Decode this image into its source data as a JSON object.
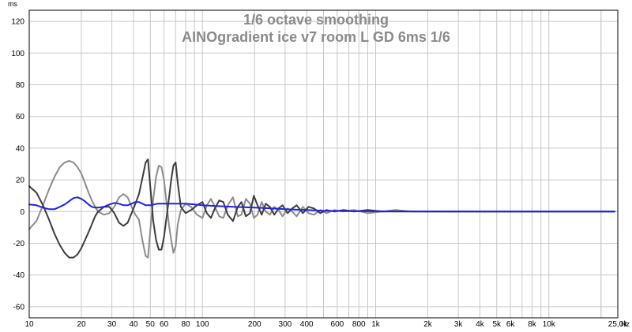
{
  "chart_data": {
    "type": "line",
    "title": "1/6 octave smoothing",
    "subtitle": "AINOgradient ice v7 room L GD 6ms 1/6",
    "ylabel": "ms",
    "xlabel": "Hz",
    "x_scale": "log",
    "xlim": [
      10,
      25000
    ],
    "ylim": [
      -67,
      127
    ],
    "y_ticks": [
      -60,
      -40,
      -20,
      0,
      20,
      40,
      60,
      80,
      100,
      120
    ],
    "x_ticks": [
      {
        "value": 10,
        "label": "10"
      },
      {
        "value": 20,
        "label": "20"
      },
      {
        "value": 30,
        "label": "30"
      },
      {
        "value": 40,
        "label": "40"
      },
      {
        "value": 50,
        "label": "50"
      },
      {
        "value": 60,
        "label": "60"
      },
      {
        "value": 80,
        "label": "80"
      },
      {
        "value": 100,
        "label": "100"
      },
      {
        "value": 200,
        "label": "200"
      },
      {
        "value": 300,
        "label": "300"
      },
      {
        "value": 400,
        "label": "400"
      },
      {
        "value": 600,
        "label": "600"
      },
      {
        "value": 800,
        "label": "800"
      },
      {
        "value": 1000,
        "label": "1k"
      },
      {
        "value": 2000,
        "label": "2k"
      },
      {
        "value": 3000,
        "label": "3k"
      },
      {
        "value": 4000,
        "label": "4k"
      },
      {
        "value": 5000,
        "label": "5k"
      },
      {
        "value": 6000,
        "label": "6k"
      },
      {
        "value": 8000,
        "label": "8k"
      },
      {
        "value": 10000,
        "label": "10k"
      },
      {
        "value": 25000,
        "label": "25,0k"
      }
    ],
    "grid": true,
    "colors": {
      "grid": "#c8c8c8",
      "title": "#8a8a8a",
      "series_dark": "#3c3c3c",
      "series_light": "#8c8c8c",
      "series_blue": "#2222dd"
    },
    "series": [
      {
        "color": "#8c8c8c",
        "points": [
          [
            10,
            -11
          ],
          [
            11,
            -6
          ],
          [
            12,
            4
          ],
          [
            13,
            14
          ],
          [
            14,
            22
          ],
          [
            15,
            28
          ],
          [
            16,
            31
          ],
          [
            17,
            32
          ],
          [
            18,
            31
          ],
          [
            19,
            28
          ],
          [
            20,
            24
          ],
          [
            21,
            18
          ],
          [
            22,
            12
          ],
          [
            23,
            7
          ],
          [
            24,
            3
          ],
          [
            25,
            0
          ],
          [
            27,
            -2
          ],
          [
            29,
            -1
          ],
          [
            31,
            3
          ],
          [
            33,
            9
          ],
          [
            35,
            11
          ],
          [
            37,
            9
          ],
          [
            39,
            3
          ],
          [
            41,
            -2
          ],
          [
            43,
            -5
          ],
          [
            45,
            -18
          ],
          [
            47,
            -28
          ],
          [
            48.5,
            -29
          ],
          [
            50,
            -12
          ],
          [
            52,
            8
          ],
          [
            54,
            22
          ],
          [
            56,
            29
          ],
          [
            58,
            28
          ],
          [
            60,
            20
          ],
          [
            62,
            6
          ],
          [
            64,
            -8
          ],
          [
            66,
            -18
          ],
          [
            68,
            -26
          ],
          [
            70,
            -22
          ],
          [
            72,
            -8
          ],
          [
            75,
            1
          ],
          [
            80,
            5
          ],
          [
            86,
            3
          ],
          [
            93,
            -2
          ],
          [
            100,
            -4
          ],
          [
            106,
            4
          ],
          [
            112,
            8
          ],
          [
            118,
            3
          ],
          [
            125,
            -3
          ],
          [
            132,
            -4
          ],
          [
            140,
            4
          ],
          [
            150,
            9
          ],
          [
            160,
            -3
          ],
          [
            168,
            -2
          ],
          [
            178,
            8
          ],
          [
            188,
            5
          ],
          [
            198,
            -4
          ],
          [
            208,
            -2
          ],
          [
            220,
            6
          ],
          [
            232,
            0
          ],
          [
            245,
            -2
          ],
          [
            260,
            3
          ],
          [
            275,
            1
          ],
          [
            290,
            -3
          ],
          [
            310,
            2
          ],
          [
            330,
            0
          ],
          [
            350,
            -3
          ],
          [
            380,
            3
          ],
          [
            410,
            -1
          ],
          [
            440,
            -2
          ],
          [
            480,
            1
          ],
          [
            520,
            -1
          ],
          [
            580,
            1
          ],
          [
            650,
            0
          ],
          [
            750,
            1
          ],
          [
            900,
            -1
          ],
          [
            1100,
            0
          ],
          [
            1300,
            1
          ],
          [
            1600,
            0
          ],
          [
            2000,
            0
          ],
          [
            3000,
            0
          ],
          [
            5000,
            0
          ],
          [
            8000,
            0
          ],
          [
            12000,
            0
          ],
          [
            18000,
            0
          ],
          [
            24000,
            0
          ]
        ]
      },
      {
        "color": "#3c3c3c",
        "points": [
          [
            10,
            16
          ],
          [
            11,
            12
          ],
          [
            12,
            4
          ],
          [
            13,
            -5
          ],
          [
            14,
            -14
          ],
          [
            15,
            -21
          ],
          [
            16,
            -26
          ],
          [
            17,
            -29
          ],
          [
            18,
            -29
          ],
          [
            19,
            -27
          ],
          [
            20,
            -23
          ],
          [
            21,
            -18
          ],
          [
            22,
            -13
          ],
          [
            23,
            -8
          ],
          [
            24,
            -3
          ],
          [
            25,
            0
          ],
          [
            27,
            3
          ],
          [
            29,
            3
          ],
          [
            31,
            -1
          ],
          [
            33,
            -7
          ],
          [
            35,
            -9
          ],
          [
            37,
            -7
          ],
          [
            39,
            -1
          ],
          [
            41,
            5
          ],
          [
            43,
            11
          ],
          [
            45,
            21
          ],
          [
            47,
            31
          ],
          [
            48.5,
            33
          ],
          [
            50,
            16
          ],
          [
            52,
            -6
          ],
          [
            54,
            -18
          ],
          [
            56,
            -24
          ],
          [
            58,
            -24
          ],
          [
            60,
            -16
          ],
          [
            62,
            -4
          ],
          [
            64,
            8
          ],
          [
            66,
            20
          ],
          [
            68,
            29
          ],
          [
            70,
            31
          ],
          [
            72,
            18
          ],
          [
            75,
            3
          ],
          [
            80,
            -1
          ],
          [
            86,
            1
          ],
          [
            93,
            4
          ],
          [
            100,
            6
          ],
          [
            106,
            -1
          ],
          [
            112,
            -4
          ],
          [
            118,
            2
          ],
          [
            125,
            7
          ],
          [
            132,
            6
          ],
          [
            140,
            -2
          ],
          [
            150,
            -6
          ],
          [
            160,
            3
          ],
          [
            168,
            6
          ],
          [
            178,
            -3
          ],
          [
            188,
            -1
          ],
          [
            198,
            10
          ],
          [
            208,
            4
          ],
          [
            220,
            -2
          ],
          [
            232,
            5
          ],
          [
            245,
            3
          ],
          [
            260,
            -2
          ],
          [
            275,
            2
          ],
          [
            290,
            4
          ],
          [
            310,
            -1
          ],
          [
            330,
            2
          ],
          [
            350,
            4
          ],
          [
            380,
            -1
          ],
          [
            410,
            3
          ],
          [
            440,
            2
          ],
          [
            480,
            -1
          ],
          [
            520,
            1
          ],
          [
            580,
            0
          ],
          [
            650,
            1
          ],
          [
            750,
            0
          ],
          [
            900,
            1
          ],
          [
            1100,
            0
          ],
          [
            1300,
            0
          ],
          [
            1600,
            0
          ],
          [
            2000,
            0
          ],
          [
            3000,
            0
          ],
          [
            5000,
            0
          ],
          [
            8000,
            0
          ],
          [
            12000,
            0
          ],
          [
            18000,
            0
          ],
          [
            24000,
            0
          ]
        ]
      },
      {
        "color": "#2222dd",
        "points": [
          [
            10,
            4.5
          ],
          [
            11,
            4
          ],
          [
            12,
            2.5
          ],
          [
            13,
            1.5
          ],
          [
            14,
            1.5
          ],
          [
            15,
            3
          ],
          [
            16,
            4.5
          ],
          [
            17,
            6.5
          ],
          [
            18,
            8.5
          ],
          [
            19,
            9
          ],
          [
            20,
            8
          ],
          [
            21,
            6.5
          ],
          [
            22,
            4.5
          ],
          [
            23,
            3
          ],
          [
            24,
            2.5
          ],
          [
            25,
            2.5
          ],
          [
            27,
            3
          ],
          [
            29,
            4.5
          ],
          [
            31,
            5.5
          ],
          [
            33,
            5
          ],
          [
            35,
            4
          ],
          [
            37,
            4
          ],
          [
            39,
            5
          ],
          [
            41,
            6
          ],
          [
            43,
            6
          ],
          [
            45,
            5
          ],
          [
            47,
            4
          ],
          [
            50,
            4
          ],
          [
            55,
            5
          ],
          [
            60,
            5
          ],
          [
            70,
            5
          ],
          [
            80,
            5
          ],
          [
            90,
            4.5
          ],
          [
            100,
            4
          ],
          [
            120,
            3.5
          ],
          [
            150,
            3
          ],
          [
            200,
            2.5
          ],
          [
            250,
            2
          ],
          [
            300,
            1.5
          ],
          [
            400,
            1
          ],
          [
            500,
            0.5
          ],
          [
            700,
            0.3
          ],
          [
            1000,
            0.2
          ],
          [
            2000,
            0.1
          ],
          [
            5000,
            0
          ],
          [
            10000,
            0
          ],
          [
            20000,
            0
          ],
          [
            24000,
            0
          ]
        ]
      }
    ]
  }
}
